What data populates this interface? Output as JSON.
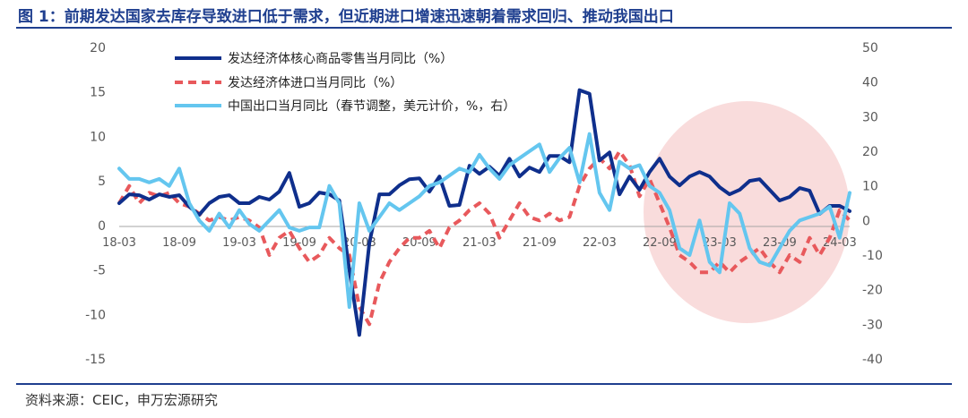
{
  "title": "图 1：前期发达国家去库存导致进口低于需求，但近期进口增速迅速朝着需求回归、推动我国出口",
  "source": "资料来源：CEIC，申万宏源研究",
  "colors": {
    "brand": "#1f3f8f",
    "retail": "#0f2f8c",
    "imports": "#e8595c",
    "exports": "#64c6ef",
    "highlight": "#f9dcdc"
  },
  "chart_data": {
    "type": "line",
    "title": "",
    "grid": false,
    "legend_position": "top-left",
    "x": [
      "2018-03",
      "2018-04",
      "2018-05",
      "2018-06",
      "2018-07",
      "2018-08",
      "2018-09",
      "2018-10",
      "2018-11",
      "2018-12",
      "2019-01",
      "2019-02",
      "2019-03",
      "2019-04",
      "2019-05",
      "2019-06",
      "2019-07",
      "2019-08",
      "2019-09",
      "2019-10",
      "2019-11",
      "2019-12",
      "2020-01",
      "2020-02",
      "2020-03",
      "2020-04",
      "2020-05",
      "2020-06",
      "2020-07",
      "2020-08",
      "2020-09",
      "2020-10",
      "2020-11",
      "2020-12",
      "2021-01",
      "2021-02",
      "2021-03",
      "2021-04",
      "2021-05",
      "2021-06",
      "2021-07",
      "2021-08",
      "2021-09",
      "2021-10",
      "2021-11",
      "2021-12",
      "2022-01",
      "2022-02",
      "2022-03",
      "2022-04",
      "2022-05",
      "2022-06",
      "2022-07",
      "2022-08",
      "2022-09",
      "2022-10",
      "2022-11",
      "2022-12",
      "2023-01",
      "2023-02",
      "2023-03",
      "2023-04",
      "2023-05",
      "2023-06",
      "2023-07",
      "2023-08",
      "2023-09",
      "2023-10",
      "2023-11",
      "2023-12",
      "2024-01",
      "2024-02",
      "2024-03",
      "2024-04"
    ],
    "x_ticks": [
      "18-03",
      "18-09",
      "19-03",
      "19-09",
      "20-03",
      "20-09",
      "21-03",
      "21-09",
      "22-03",
      "22-09",
      "23-03",
      "23-09",
      "24-03"
    ],
    "ylim_left": [
      -15,
      20
    ],
    "ylim_right": [
      -40,
      50
    ],
    "yticks_left": [
      -15,
      -10,
      -5,
      0,
      5,
      10,
      15,
      20
    ],
    "yticks_right": [
      -40,
      -30,
      -20,
      -10,
      0,
      10,
      20,
      30,
      40,
      50
    ],
    "series": [
      {
        "name": "发达经济体核心商品零售当月同比（%）",
        "axis": "left",
        "style": "solid",
        "color": "#0f2f8c",
        "values": [
          2.5,
          3.5,
          3.4,
          2.9,
          3.5,
          3.2,
          3.4,
          2.1,
          1.2,
          2.5,
          3.2,
          3.4,
          2.5,
          2.5,
          3.2,
          2.9,
          3.8,
          5.9,
          2.1,
          2.5,
          3.7,
          3.5,
          2.8,
          -5.0,
          -12.3,
          -2.0,
          3.5,
          3.5,
          4.5,
          5.2,
          5.3,
          3.8,
          5.5,
          2.2,
          2.3,
          6.7,
          5.8,
          6.6,
          5.6,
          7.5,
          5.5,
          6.5,
          6.0,
          7.8,
          7.8,
          7.1,
          15.2,
          14.8,
          7.3,
          8.2,
          3.5,
          5.5,
          4.0,
          6.0,
          7.5,
          5.5,
          4.5,
          5.5,
          6.0,
          5.5,
          4.3,
          3.5,
          4.0,
          5.0,
          5.2,
          4.0,
          2.8,
          3.2,
          4.2,
          3.9,
          1.3,
          2.2,
          2.2,
          1.6
        ]
      },
      {
        "name": "发达经济体进口当月同比（%）",
        "axis": "right",
        "style": "dashed",
        "color": "#e8595c",
        "values": [
          5,
          10,
          5,
          8,
          7,
          8,
          5,
          4,
          2,
          0,
          1,
          0,
          1,
          0,
          -2,
          -10,
          -5,
          -3,
          -8,
          -12,
          -10,
          -5,
          -8,
          -10,
          -25,
          -30,
          -18,
          -12,
          -8,
          -5,
          -5,
          -3,
          -8,
          -2,
          0,
          3,
          5,
          2,
          -5,
          0,
          5,
          1,
          0,
          2,
          0,
          1,
          10,
          15,
          18,
          15,
          20,
          16,
          7,
          12,
          5,
          -2,
          -10,
          -12,
          -15,
          -15,
          -12,
          -15,
          -12,
          -10,
          -8,
          -12,
          -15,
          -10,
          -12,
          -5,
          -10,
          -5,
          3,
          0
        ]
      },
      {
        "name": "中国出口当月同比（春节调整，美元计价，%，右）",
        "axis": "right",
        "style": "solid",
        "color": "#64c6ef",
        "values": [
          15,
          12,
          12,
          11,
          12,
          10,
          15,
          5,
          0,
          -3,
          2,
          -2,
          3,
          -1,
          -3,
          0,
          3,
          -2,
          -3,
          -2,
          -2,
          10,
          5,
          -25,
          5,
          -3,
          1,
          5,
          3,
          5,
          7,
          10,
          11,
          13,
          15,
          14,
          19,
          15,
          12,
          16,
          18,
          20,
          22,
          14,
          18,
          21,
          11,
          25,
          8,
          3,
          17,
          15,
          16,
          10,
          8,
          3,
          -8,
          -10,
          0,
          -12,
          -15,
          5,
          2,
          -8,
          -12,
          -13,
          -8,
          -3,
          0,
          1,
          2,
          4,
          -5,
          8
        ]
      }
    ]
  }
}
